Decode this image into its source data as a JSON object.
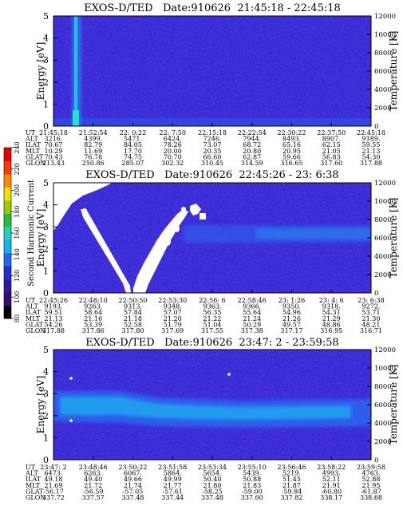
{
  "colorbar": {
    "label": "Second Harmonic Current",
    "ticks": [
      "80",
      "100",
      "120",
      "140",
      "160",
      "180",
      "200",
      "220",
      "240"
    ],
    "colors": [
      "#000000",
      "#3a0a6a",
      "#2b1a9a",
      "#1f2fd8",
      "#1e6af0",
      "#12b4f0",
      "#19d7b8",
      "#23c23a",
      "#9acd00",
      "#f2e000",
      "#ff8a00",
      "#ff3a00",
      "#e80000"
    ]
  },
  "orbit_labels": [
    "UT",
    "ALT",
    "ILAT",
    "MLT",
    "GLAT",
    "GLON"
  ],
  "chart_data": [
    {
      "type": "heatmap",
      "title": "EXOS-D/TED   Date:910626  21:45:18 - 22:45:18",
      "ylabel": "Energy [eV]",
      "y2label": "Temperature [K]",
      "ylim": [
        0,
        5
      ],
      "y2lim": [
        0,
        12000
      ],
      "yticks": [
        "0",
        "1",
        "2",
        "3",
        "4",
        "5"
      ],
      "y2ticks": [
        "0",
        "2000",
        "4000",
        "6000",
        "8000",
        "10000",
        "12000"
      ],
      "orbit_table": [
        [
          "21:45:18",
          "21:52:54",
          "22: 0:22",
          "22: 7:50",
          "22:15:18",
          "22:22:54",
          "22:30:22",
          "22:37:50",
          "22:45:18"
        ],
        [
          "3216.",
          "4399.",
          "5471.",
          "6424.",
          "7246.",
          "7944.",
          "8493.",
          "8907.",
          "9189."
        ],
        [
          "70.67",
          "82.79",
          "84.05",
          "78.26",
          "73.07",
          "68.72",
          "65.16",
          "62.15",
          "59.55"
        ],
        [
          "10.29",
          "11.69",
          "17.70",
          "20.00",
          "20.35",
          "20.80",
          "20.95",
          "21.05",
          "21.13"
        ],
        [
          "70.43",
          "76.78",
          "74.75",
          "70.70",
          "66.60",
          "62.87",
          "59.66",
          "56.83",
          "54.30"
        ],
        [
          "213.43",
          "250.86",
          "285.07",
          "302.32",
          "310.45",
          "314.59",
          "316.65",
          "317.60",
          "317.88"
        ]
      ]
    },
    {
      "type": "heatmap",
      "title": "EXOS-D/TED   Date:910626  22:45:26 - 23: 6:38",
      "ylabel": "Energy [eV]",
      "y2label": "Temperature [K]",
      "ylim": [
        0,
        5
      ],
      "y2lim": [
        0,
        12000
      ],
      "yticks": [
        "0",
        "1",
        "2",
        "3",
        "4",
        "5"
      ],
      "y2ticks": [
        "0",
        "2000",
        "4000",
        "6000",
        "8000",
        "10000",
        "12000"
      ],
      "orbit_table": [
        [
          "22:45:26",
          "22:48:10",
          "22:50:50",
          "22:53:30",
          "22:56: 6",
          "22:58:46",
          "23: 1:26",
          "23: 4: 6",
          "23: 6:38"
        ],
        [
          "9193.",
          "9263.",
          "9313.",
          "9348.",
          "9363.",
          "9366.",
          "9350.",
          "9318.",
          "9272."
        ],
        [
          "59.51",
          "58.64",
          "57.84",
          "57.07",
          "56.35",
          "55.64",
          "54.96",
          "54.31",
          "53.71"
        ],
        [
          "21.13",
          "21.16",
          "21.18",
          "21.20",
          "21.22",
          "21.24",
          "21.26",
          "21.29",
          "21.30"
        ],
        [
          "54.26",
          "53.39",
          "52.58",
          "51.79",
          "51.04",
          "50.29",
          "49.57",
          "48.86",
          "48.21"
        ],
        [
          "317.88",
          "317.86",
          "317.80",
          "317.69",
          "317.55",
          "317.38",
          "317.17",
          "316.95",
          "316.71"
        ]
      ]
    },
    {
      "type": "heatmap",
      "title": "EXOS-D/TED   Date:910626  23:47: 2 - 23:59:58",
      "ylabel": "Energy [eV]",
      "y2label": "Temperature [K]",
      "ylim": [
        0,
        5
      ],
      "y2lim": [
        0,
        12000
      ],
      "yticks": [
        "0",
        "1",
        "2",
        "3",
        "4",
        "5"
      ],
      "y2ticks": [
        "0",
        "2000",
        "4000",
        "6000",
        "8000",
        "10000",
        "12000"
      ],
      "orbit_table": [
        [
          "23:47: 2",
          "23:48:46",
          "23:50:22",
          "23:51:58",
          "23:53:34",
          "23:55:10",
          "23:56:46",
          "23:58:22",
          "23:59:58"
        ],
        [
          "6473.",
          "6263.",
          "6067.",
          "5864.",
          "5654.",
          "5439.",
          "5219.",
          "4993.",
          "4763."
        ],
        [
          "49.18",
          "49.40",
          "49.66",
          "49.99",
          "50.40",
          "50.88",
          "51.45",
          "52.11",
          "52.88"
        ],
        [
          "21.69",
          "21.72",
          "21.74",
          "21.77",
          "21.80",
          "21.83",
          "21.87",
          "21.91",
          "21.95"
        ],
        [
          "-56.17",
          "-56.59",
          "-57.05",
          "-57.61",
          "-58.25",
          "-59.00",
          "-59.84",
          "-60.80",
          "-61.87"
        ],
        [
          "337.72",
          "337.57",
          "337.48",
          "337.44",
          "337.48",
          "337.60",
          "337.82",
          "338.17",
          "338.68"
        ]
      ]
    }
  ]
}
